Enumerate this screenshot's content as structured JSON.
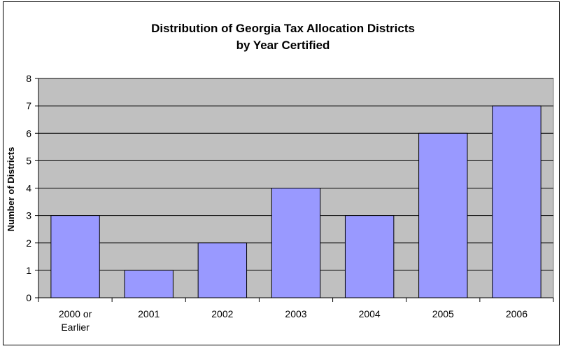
{
  "chart_data": {
    "type": "bar",
    "title_line1": "Distribution of Georgia Tax Allocation Districts",
    "title_line2": "by Year Certified",
    "ylabel": "Number of Districts",
    "xlabel": "",
    "categories": [
      [
        "2000 or",
        "Earlier"
      ],
      [
        "2001"
      ],
      [
        "2002"
      ],
      [
        "2003"
      ],
      [
        "2004"
      ],
      [
        "2005"
      ],
      [
        "2006"
      ]
    ],
    "values": [
      3,
      1,
      2,
      4,
      3,
      6,
      7
    ],
    "ylim": [
      0,
      8
    ],
    "yticks": [
      0,
      1,
      2,
      3,
      4,
      5,
      6,
      7,
      8
    ],
    "grid": true,
    "legend": "none",
    "colors": {
      "plot_background": "#c0c0c0",
      "bar_fill": "#9999ff",
      "bar_stroke": "#000000",
      "gridline": "#000000"
    }
  }
}
